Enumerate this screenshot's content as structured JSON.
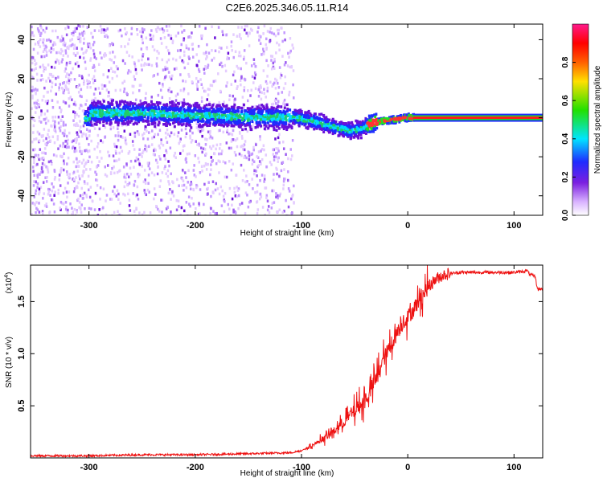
{
  "figure": {
    "title": "C2E6.2025.346.05.11.R14"
  },
  "chart_data": [
    {
      "type": "heatmap",
      "title": "C2E6.2025.346.05.11.R14",
      "xlabel": "Height of straight line (km)",
      "ylabel": "Frequency (Hz)",
      "xlim": [
        -355,
        127
      ],
      "ylim": [
        -50,
        48
      ],
      "xticks": [
        -300,
        -200,
        -100,
        0,
        100
      ],
      "yticks": [
        -40,
        -20,
        0,
        20,
        40
      ],
      "colorbar": {
        "label": "Normalized spectral amplitude",
        "range": [
          0.0,
          1.0
        ],
        "ticks": [
          0.0,
          0.2,
          0.4,
          0.6,
          0.8
        ],
        "tick_labels": [
          "0.0",
          "0.2",
          "0.4",
          "0.6",
          "0.8"
        ],
        "colormap": [
          "#ffffff",
          "#d9b3ff",
          "#7b1fe0",
          "#1f2bff",
          "#00e5ff",
          "#22e000",
          "#ffe000",
          "#ff6000",
          "#ff0000",
          "#ff1a8c"
        ]
      },
      "ridge": {
        "description_points_x_km": [
          -300,
          -250,
          -200,
          -150,
          -110,
          -90,
          -70,
          -55,
          -45,
          -35,
          -25,
          -10,
          0,
          10,
          127
        ],
        "frequency_hz": [
          3,
          3,
          2,
          1,
          1,
          -1,
          -4,
          -6,
          -5,
          -2,
          -1,
          0,
          1,
          0,
          0
        ]
      }
    },
    {
      "type": "line",
      "xlabel": "Height of straight line (km)",
      "ylabel": "SNR (10 * v/v)",
      "y_multiplier": "(x10^4)",
      "y_multiplier_base": "(x10",
      "y_multiplier_exp": "4",
      "y_multiplier_close": ")",
      "xlim": [
        -355,
        127
      ],
      "ylim": [
        0.0,
        1.85
      ],
      "xticks": [
        -300,
        -200,
        -100,
        0,
        100
      ],
      "yticks": [
        0.5,
        1.0,
        1.5
      ],
      "ytick_labels": [
        "0.5",
        "1.0",
        "1.5"
      ],
      "series": [
        {
          "name": "SNR",
          "color": "#ee1111",
          "x": [
            -355,
            -300,
            -250,
            -200,
            -150,
            -110,
            -100,
            -90,
            -80,
            -70,
            -60,
            -50,
            -45,
            -40,
            -35,
            -30,
            -25,
            -20,
            -15,
            -10,
            -5,
            0,
            5,
            10,
            15,
            20,
            25,
            30,
            35,
            40,
            50,
            60,
            80,
            100,
            110,
            112,
            115,
            120,
            122,
            127
          ],
          "values": [
            0.02,
            0.02,
            0.03,
            0.03,
            0.04,
            0.05,
            0.07,
            0.12,
            0.18,
            0.25,
            0.35,
            0.45,
            0.5,
            0.55,
            0.65,
            0.75,
            0.9,
            1.0,
            1.1,
            1.2,
            1.3,
            1.35,
            1.42,
            1.5,
            1.58,
            1.65,
            1.7,
            1.74,
            1.76,
            1.77,
            1.78,
            1.78,
            1.78,
            1.78,
            1.79,
            1.8,
            1.76,
            1.74,
            1.62,
            1.62
          ]
        }
      ]
    }
  ]
}
